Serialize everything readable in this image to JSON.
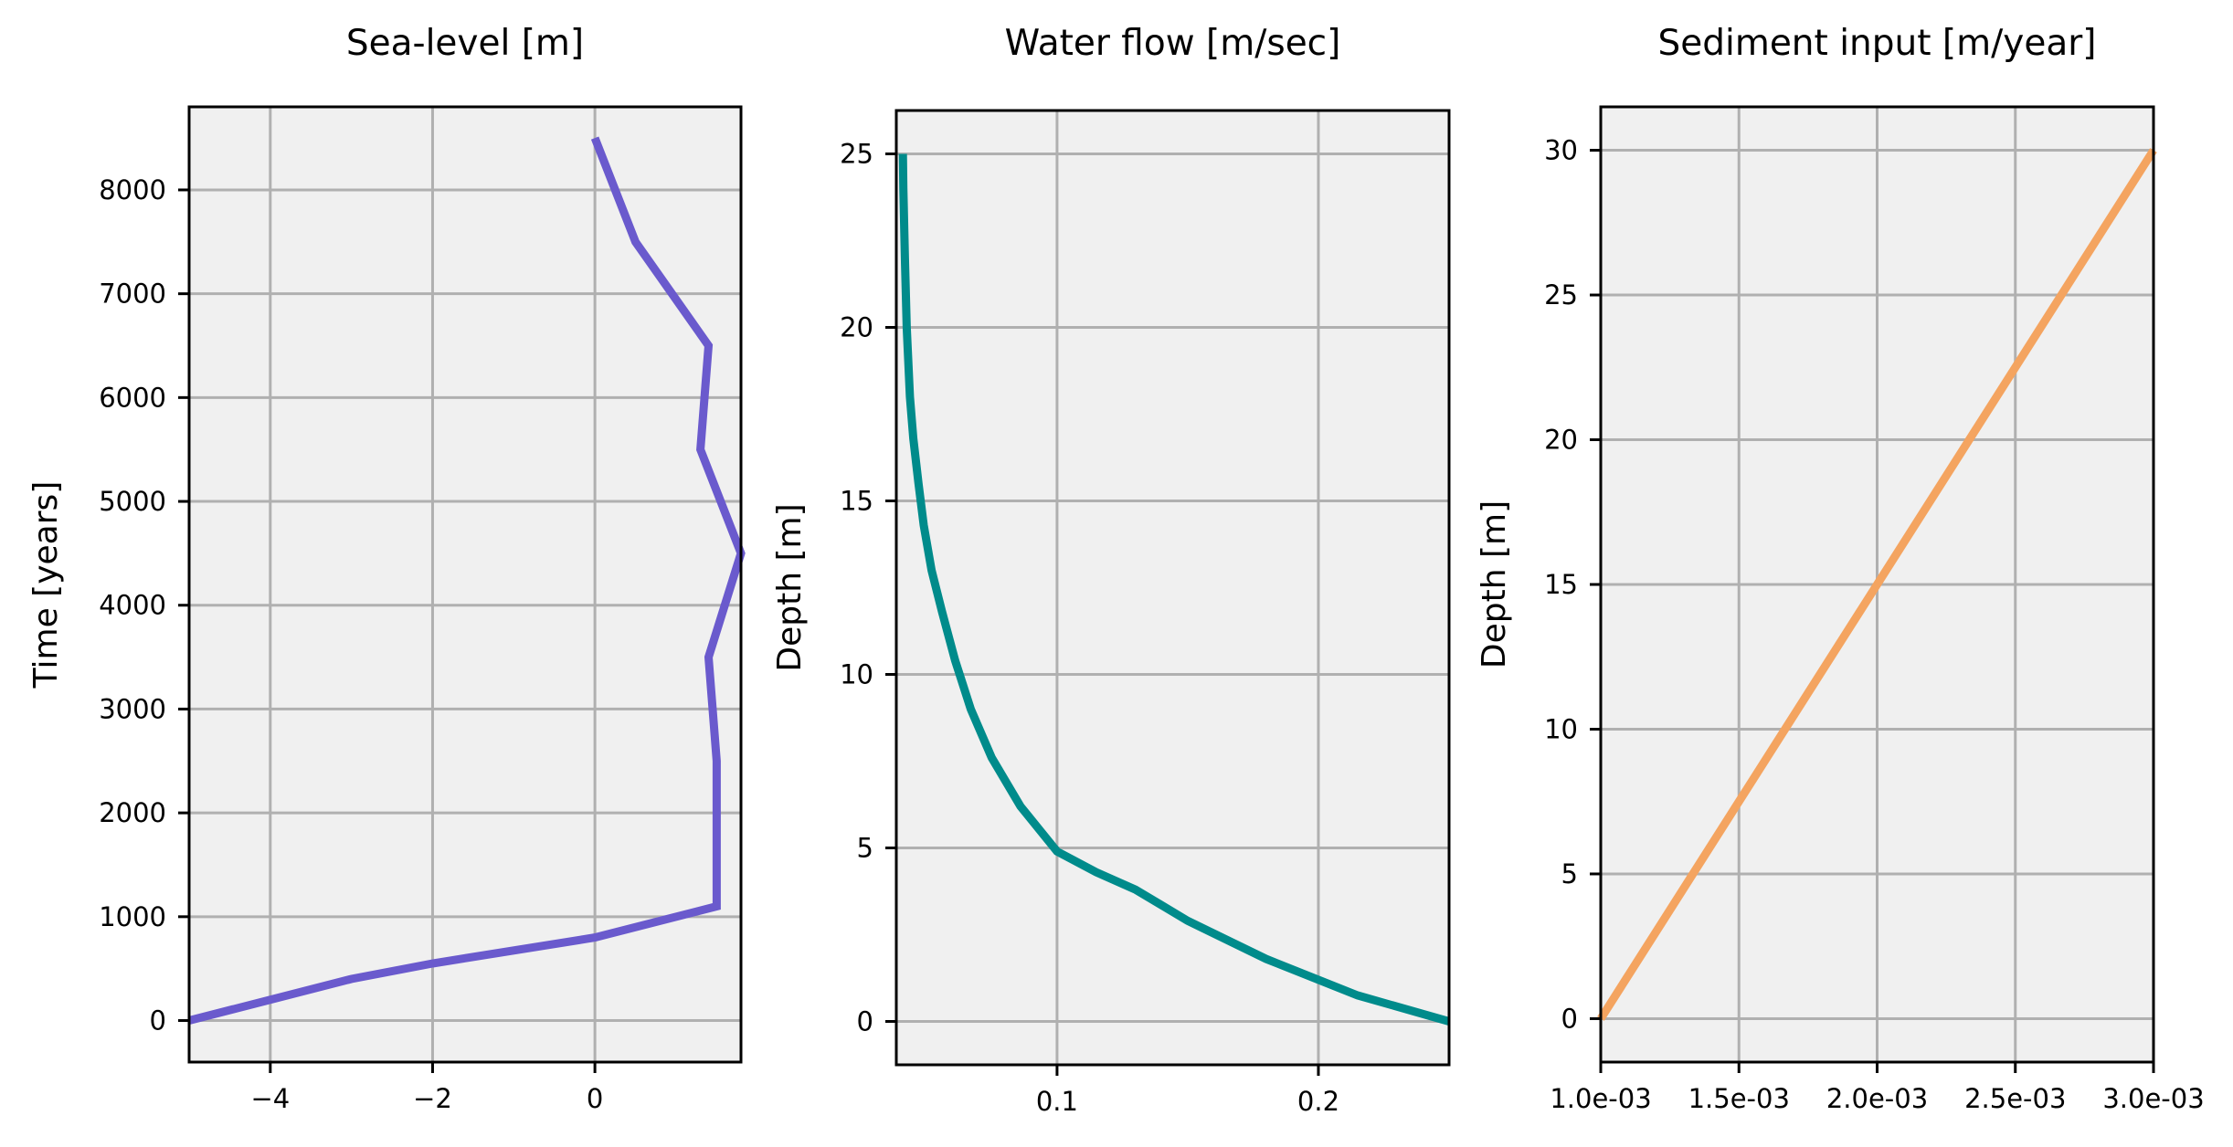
{
  "chart_data": [
    {
      "type": "line",
      "title": "Sea-level [m]",
      "xlabel": "",
      "ylabel": "Time [years]",
      "xlim": [
        -5,
        1.8
      ],
      "ylim": [
        -400,
        8800
      ],
      "xticks": [
        -4,
        -2,
        0
      ],
      "xtick_labels": [
        "−4",
        "−2",
        "0"
      ],
      "yticks": [
        0,
        1000,
        2000,
        3000,
        4000,
        5000,
        6000,
        7000,
        8000
      ],
      "ytick_labels": [
        "0",
        "1000",
        "2000",
        "3000",
        "4000",
        "5000",
        "6000",
        "7000",
        "8000"
      ],
      "grid": true,
      "color": "#6a5acd",
      "series": [
        {
          "x": [
            -5.0,
            -3.0,
            -2.0,
            0.0,
            1.5,
            1.5,
            1.5,
            1.4,
            1.8,
            1.3,
            1.4,
            0.5,
            0.0
          ],
          "y": [
            0,
            400,
            550,
            800,
            1100,
            2000,
            2500,
            3500,
            4500,
            5500,
            6500,
            7500,
            8500
          ]
        }
      ]
    },
    {
      "type": "line",
      "title": "Water flow [m/sec]",
      "xlabel": "",
      "ylabel": "Depth [m]",
      "xlim": [
        0.0385,
        0.25
      ],
      "ylim": [
        -1.25,
        26.25
      ],
      "xticks": [
        0.1,
        0.2
      ],
      "xtick_labels": [
        "0.1",
        "0.2"
      ],
      "yticks": [
        0,
        5,
        10,
        15,
        20,
        25
      ],
      "ytick_labels": [
        "0",
        "5",
        "10",
        "15",
        "20",
        "25"
      ],
      "grid": true,
      "color": "#008b8b",
      "series": [
        {
          "x": [
            0.25,
            0.215,
            0.18,
            0.15,
            0.13,
            0.115,
            0.1,
            0.086,
            0.075,
            0.067,
            0.061,
            0.056,
            0.052,
            0.049,
            0.047,
            0.045,
            0.0437,
            0.0425,
            0.0418,
            0.0412,
            0.041
          ],
          "y": [
            0,
            0.75,
            1.8,
            2.9,
            3.8,
            4.3,
            4.9,
            6.2,
            7.6,
            9.0,
            10.4,
            11.8,
            13.0,
            14.3,
            15.5,
            16.8,
            18.0,
            20.0,
            22.0,
            24.0,
            25.0
          ]
        }
      ]
    },
    {
      "type": "line",
      "title": "Sediment input [m/year]",
      "xlabel": "",
      "ylabel": "Depth [m]",
      "xlim": [
        0.001,
        0.003
      ],
      "ylim": [
        -1.5,
        31.5
      ],
      "xticks": [
        0.001,
        0.0015,
        0.002,
        0.0025,
        0.003
      ],
      "xtick_labels": [
        "1.0e-03",
        "1.5e-03",
        "2.0e-03",
        "2.5e-03",
        "3.0e-03"
      ],
      "yticks": [
        0,
        5,
        10,
        15,
        20,
        25,
        30
      ],
      "ytick_labels": [
        "0",
        "5",
        "10",
        "15",
        "20",
        "25",
        "30"
      ],
      "grid": true,
      "color": "#f4a460",
      "series": [
        {
          "x": [
            0.001,
            0.003
          ],
          "y": [
            0,
            30
          ]
        }
      ]
    }
  ]
}
